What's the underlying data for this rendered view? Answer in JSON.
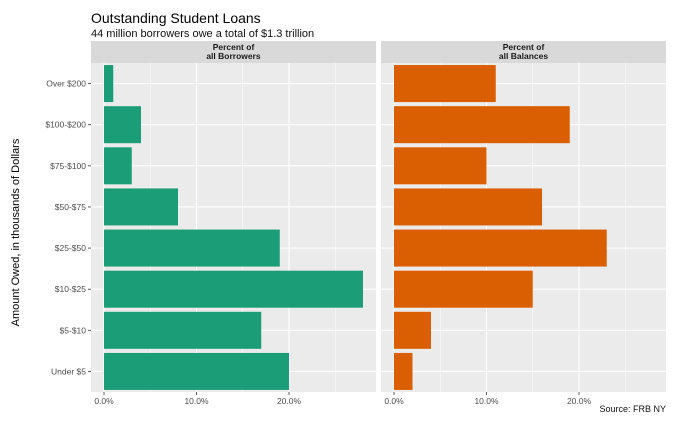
{
  "header": {
    "title": "Outstanding Student Loans",
    "subtitle": "44 million borrowers owe a total of $1.3 trillion"
  },
  "footer": {
    "caption": "Source: FRB NY"
  },
  "chart_data": {
    "type": "bar",
    "orientation": "horizontal",
    "ylabel": "Amount Owed, in thousands of Dollars",
    "categories": [
      "Under $5",
      "$5-$10",
      "$10-$25",
      "$25-$50",
      "$50-$75",
      "$75-$100",
      "$100-$200",
      "Over $200"
    ],
    "x_ticks": [
      "0.0%",
      "10.0%",
      "20.0%"
    ],
    "xlim": [
      0,
      0.28
    ],
    "grid": true,
    "panels": [
      {
        "name": "Percent of all Borrowers",
        "strip": [
          "Percent of",
          "all Borrowers"
        ],
        "color": "#1b9e77",
        "values": [
          0.2,
          0.17,
          0.28,
          0.19,
          0.08,
          0.03,
          0.04,
          0.01
        ]
      },
      {
        "name": "Percent of all Balances",
        "strip": [
          "Percent of",
          "all Balances"
        ],
        "color": "#d95f02",
        "values": [
          0.02,
          0.04,
          0.15,
          0.23,
          0.16,
          0.1,
          0.19,
          0.11
        ]
      }
    ],
    "colors": {
      "panel_bg": "#ebebeb",
      "strip_bg": "#d9d9d9",
      "grid": "#ffffff"
    }
  }
}
